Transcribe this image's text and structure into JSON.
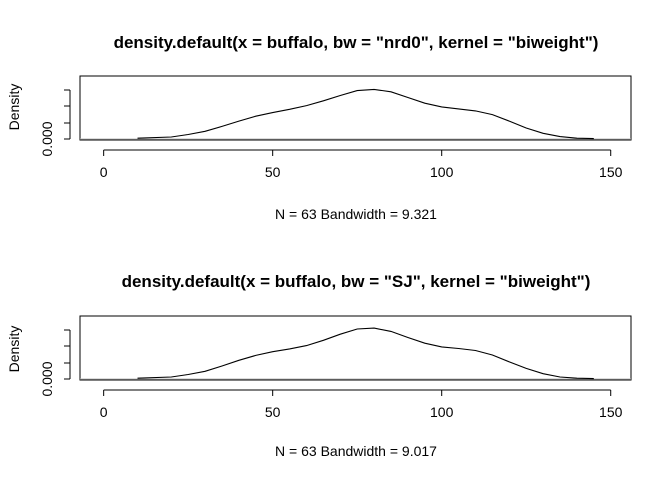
{
  "chart_data": [
    {
      "type": "line",
      "title": "density.default(x = buffalo, bw = \"nrd0\", kernel = \"biweight\")",
      "xlabel": "N = 63   Bandwidth = 9.321",
      "ylabel": "Density",
      "xlim": [
        -7,
        156
      ],
      "xticks": [
        0,
        50,
        100,
        150
      ],
      "ytick_label": "0.000",
      "ylim": [
        0,
        0.0145
      ],
      "series": [
        {
          "x": [
            10,
            20,
            25,
            30,
            35,
            40,
            45,
            50,
            55,
            60,
            65,
            70,
            75,
            80,
            85,
            90,
            95,
            100,
            105,
            110,
            115,
            120,
            125,
            130,
            135,
            140,
            145
          ],
          "y": [
            0.0002,
            0.0005,
            0.0011,
            0.0019,
            0.0031,
            0.0044,
            0.0056,
            0.0065,
            0.0073,
            0.0082,
            0.0094,
            0.0107,
            0.0119,
            0.0122,
            0.0116,
            0.0102,
            0.0088,
            0.0079,
            0.0074,
            0.0069,
            0.006,
            0.0044,
            0.0027,
            0.0014,
            0.0006,
            0.0002,
            0.0001
          ]
        }
      ]
    },
    {
      "type": "line",
      "title": "density.default(x = buffalo, bw = \"SJ\", kernel = \"biweight\")",
      "xlabel": "N = 63   Bandwidth = 9.017",
      "ylabel": "Density",
      "xlim": [
        -7,
        156
      ],
      "xticks": [
        0,
        50,
        100,
        150
      ],
      "ytick_label": "0.000",
      "ylim": [
        0,
        0.0145
      ],
      "series": [
        {
          "x": [
            10,
            20,
            25,
            30,
            35,
            40,
            45,
            50,
            55,
            60,
            65,
            70,
            75,
            80,
            85,
            90,
            95,
            100,
            105,
            110,
            115,
            120,
            125,
            130,
            135,
            140,
            145
          ],
          "y": [
            0.0002,
            0.0005,
            0.0011,
            0.0019,
            0.0032,
            0.0046,
            0.0058,
            0.0067,
            0.0074,
            0.0082,
            0.0095,
            0.011,
            0.0123,
            0.0125,
            0.0117,
            0.0102,
            0.0088,
            0.0079,
            0.0075,
            0.007,
            0.0059,
            0.0042,
            0.0026,
            0.0013,
            0.0005,
            0.0002,
            0.0001
          ]
        }
      ]
    }
  ]
}
